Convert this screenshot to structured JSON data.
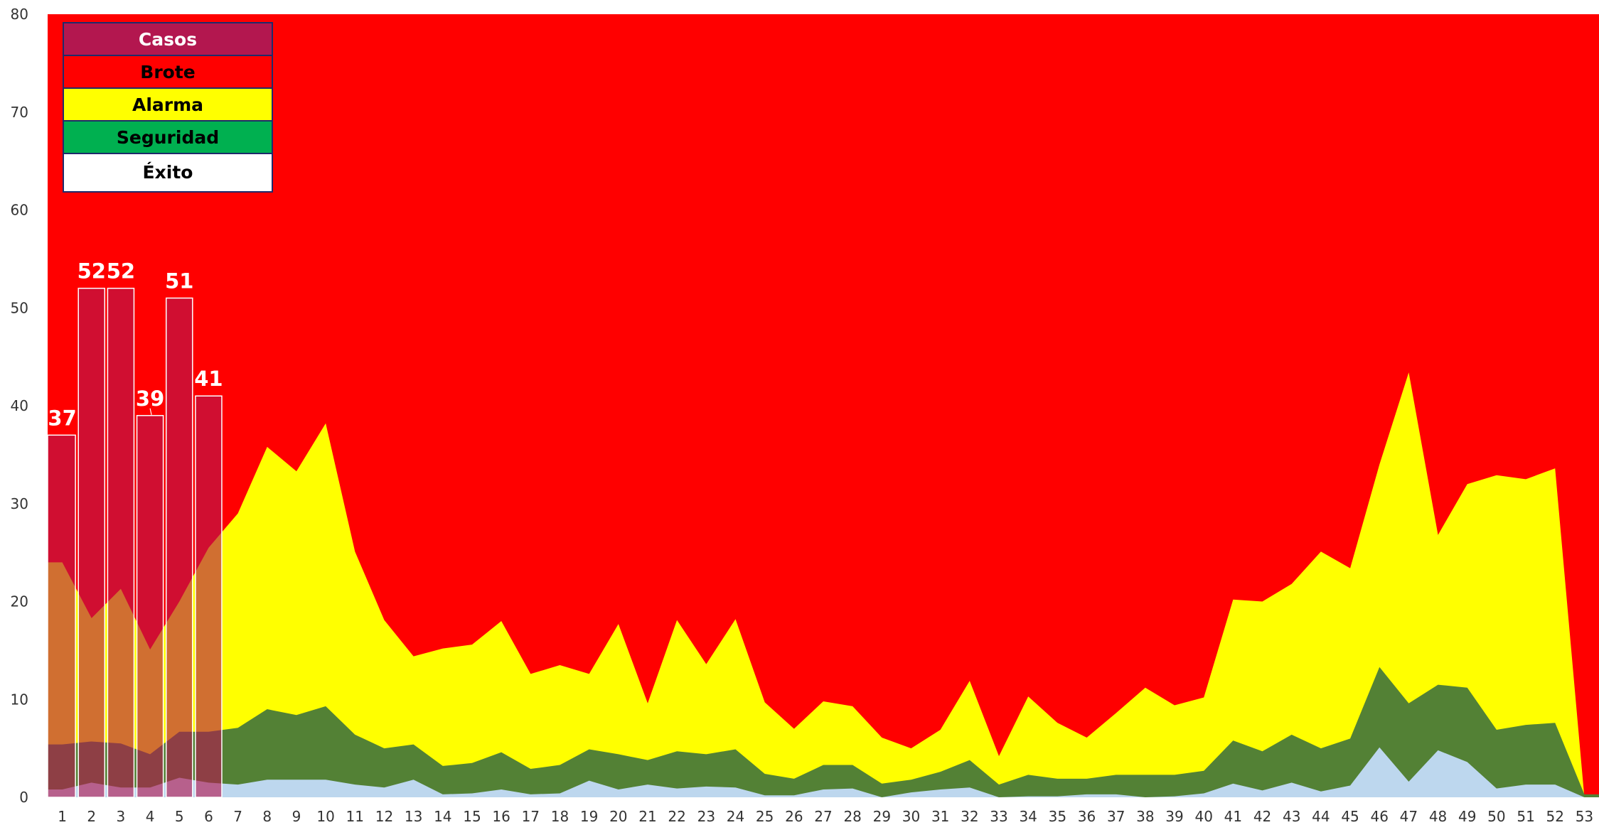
{
  "chart_data": {
    "type": "area",
    "y_ticks": [
      "0",
      "10",
      "20",
      "30",
      "40",
      "50",
      "60",
      "70",
      "80"
    ],
    "ylim": [
      0,
      80
    ],
    "x_ticks": [
      "1",
      "2",
      "3",
      "4",
      "5",
      "6",
      "7",
      "8",
      "9",
      "10",
      "11",
      "12",
      "13",
      "14",
      "15",
      "16",
      "17",
      "18",
      "19",
      "20",
      "21",
      "22",
      "23",
      "24",
      "25",
      "26",
      "27",
      "28",
      "29",
      "30",
      "31",
      "32",
      "33",
      "34",
      "35",
      "36",
      "37",
      "38",
      "39",
      "40",
      "41",
      "42",
      "43",
      "44",
      "45",
      "46",
      "47",
      "48",
      "49",
      "50",
      "51",
      "52",
      "53"
    ],
    "legend": [
      {
        "label": "Casos",
        "color": "#b3174f",
        "text_color": "#ffffff"
      },
      {
        "label": "Brote",
        "color": "#ff0000",
        "text_color": "#000000"
      },
      {
        "label": "Alarma",
        "color": "#ffff00",
        "text_color": "#000000"
      },
      {
        "label": "Seguridad",
        "color": "#00b050",
        "text_color": "#000000"
      },
      {
        "label": "Éxito",
        "color": "#ffffff",
        "text_color": "#000000"
      }
    ],
    "colors": {
      "brote": "#ff0000",
      "alarma": "#ffff00",
      "seguridad": "#538135",
      "exito": "#bdd7ee",
      "casos": "#b3174f"
    },
    "brote_level": 80,
    "alarma": [
      24,
      18.3,
      21.3,
      15.1,
      20,
      25.5,
      29,
      35.8,
      33.3,
      38.2,
      25.1,
      18.1,
      14.4,
      15.2,
      15.6,
      18,
      12.6,
      13.5,
      12.6,
      17.7,
      9.6,
      18.1,
      13.6,
      18.2,
      9.7,
      7,
      9.8,
      9.3,
      6.1,
      5,
      6.9,
      11.9,
      4.2,
      10.3,
      7.6,
      6.1,
      8.6,
      11.2,
      9.4,
      10.2,
      20.2,
      20,
      21.8,
      25.1,
      23.4,
      34,
      43.4,
      26.8,
      32,
      32.9,
      32.5,
      33.6,
      0
    ],
    "seguridad": [
      5.4,
      5.7,
      5.5,
      4.4,
      6.7,
      6.7,
      7.1,
      9,
      8.4,
      9.3,
      6.4,
      5,
      5.4,
      3.2,
      3.5,
      4.6,
      2.9,
      3.3,
      4.9,
      4.4,
      3.8,
      4.7,
      4.4,
      4.9,
      2.4,
      1.9,
      3.3,
      3.3,
      1.4,
      1.8,
      2.6,
      3.8,
      1.3,
      2.3,
      1.9,
      1.9,
      2.3,
      2.3,
      2.3,
      2.7,
      5.8,
      4.7,
      6.4,
      5,
      6,
      13.3,
      9.6,
      11.5,
      11.2,
      6.9,
      7.4,
      7.6,
      0.3
    ],
    "exito": [
      0.8,
      1.5,
      1,
      1,
      2,
      1.5,
      1.3,
      1.8,
      1.8,
      1.8,
      1.3,
      1,
      1.8,
      0.3,
      0.4,
      0.8,
      0.3,
      0.4,
      1.7,
      0.8,
      1.3,
      0.9,
      1.1,
      1,
      0.2,
      0.2,
      0.8,
      0.9,
      0,
      0.5,
      0.8,
      1,
      0,
      0.1,
      0.1,
      0.3,
      0.3,
      0,
      0.1,
      0.4,
      1.4,
      0.7,
      1.5,
      0.6,
      1.2,
      5.1,
      1.6,
      4.8,
      3.6,
      0.9,
      1.3,
      1.3,
      0
    ],
    "casos": {
      "weeks": [
        "1",
        "2",
        "3",
        "4",
        "5",
        "6"
      ],
      "values": [
        37,
        52,
        52,
        39,
        51,
        41
      ],
      "labels": [
        "37",
        "52",
        "52",
        "39",
        "51",
        "41"
      ]
    }
  }
}
